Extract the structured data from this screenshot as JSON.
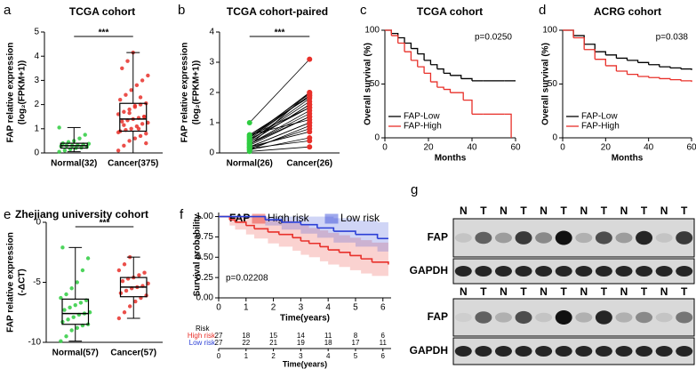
{
  "chart_data": [
    {
      "panel": "a",
      "type": "box",
      "title": "TCGA cohort",
      "ylabel": [
        "FAP relative expression",
        "(log₂(FPKM+1))"
      ],
      "categories": [
        "Normal(32)",
        "Cancer(375)"
      ],
      "ylim": [
        0,
        5
      ],
      "yticks": [
        0,
        1,
        2,
        3,
        4,
        5
      ],
      "significance": "***",
      "boxes": [
        {
          "color": "#2ecc40",
          "min": 0.05,
          "q1": 0.2,
          "median": 0.3,
          "q3": 0.4,
          "max": 1.05,
          "points": [
            0.05,
            0.1,
            0.15,
            0.2,
            0.22,
            0.25,
            0.28,
            0.3,
            0.3,
            0.32,
            0.35,
            0.38,
            0.4,
            0.45,
            0.5,
            0.6,
            0.75,
            1.05
          ]
        },
        {
          "color": "#e8302a",
          "min": 0,
          "q1": 0.9,
          "median": 1.4,
          "q3": 2.05,
          "max": 4.15,
          "points": [
            0.1,
            0.3,
            0.5,
            0.6,
            0.7,
            0.8,
            0.9,
            0.95,
            1.0,
            1.1,
            1.2,
            1.25,
            1.3,
            1.35,
            1.4,
            1.45,
            1.5,
            1.6,
            1.7,
            1.8,
            1.9,
            2.0,
            2.05,
            2.2,
            2.4,
            2.6,
            2.8,
            3.0,
            3.2,
            3.5,
            3.8,
            4.15,
            1.0,
            1.5,
            0.85,
            1.15,
            1.65,
            1.95,
            2.3,
            0.4
          ]
        }
      ]
    },
    {
      "panel": "b",
      "type": "paired",
      "title": "TCGA cohort-paired",
      "ylabel": [
        "FAP relative expression",
        "(log₂(FPKM+1))"
      ],
      "categories": [
        "Normal(26)",
        "Cancer(26)"
      ],
      "ylim": [
        0,
        4
      ],
      "yticks": [
        0,
        1,
        2,
        3,
        4
      ],
      "significance": "***",
      "colors": [
        "#2ecc40",
        "#e8302a"
      ],
      "values": [
        [
          0.05,
          0.1,
          0.15,
          0.2,
          0.25,
          0.3,
          0.35,
          0.4,
          0.45,
          0.5,
          0.55,
          0.6,
          0.2,
          0.3,
          0.1,
          0.4,
          0.25,
          0.35,
          0.15,
          0.5,
          0.3,
          0.2,
          1.0,
          0.45,
          0.6,
          0.55
        ],
        [
          0.2,
          0.5,
          0.8,
          1.0,
          1.2,
          1.4,
          1.6,
          1.8,
          1.9,
          2.0,
          1.5,
          1.1,
          0.7,
          1.3,
          0.9,
          1.7,
          2.0,
          1.6,
          0.4,
          1.9,
          1.2,
          1.0,
          3.1,
          1.5,
          1.85,
          1.95
        ]
      ]
    },
    {
      "panel": "c",
      "type": "km",
      "title": "TCGA cohort",
      "ylabel": [
        "Overall survival (%)"
      ],
      "xlabel": "Months",
      "annotation": "p=0.0250",
      "xlim": [
        0,
        60
      ],
      "xticks": [
        0,
        20,
        40,
        60
      ],
      "ylim": [
        0,
        100
      ],
      "yticks": [
        0,
        50,
        100
      ],
      "legend": "lower left",
      "series": [
        {
          "name": "FAP-Low",
          "color": "#000000",
          "x": [
            0,
            3,
            6,
            9,
            12,
            15,
            18,
            21,
            24,
            27,
            30,
            35,
            40,
            45,
            50,
            55,
            60
          ],
          "values": [
            100,
            97,
            93,
            88,
            83,
            78,
            72,
            68,
            64,
            60,
            58,
            55,
            53,
            53,
            53,
            53,
            53
          ]
        },
        {
          "name": "FAP-High",
          "color": "#e8302a",
          "x": [
            0,
            3,
            6,
            9,
            12,
            15,
            18,
            21,
            24,
            27,
            30,
            36,
            40,
            45,
            50,
            55,
            58
          ],
          "values": [
            100,
            95,
            88,
            80,
            72,
            66,
            60,
            52,
            47,
            45,
            42,
            35,
            22,
            22,
            22,
            22,
            0
          ]
        }
      ]
    },
    {
      "panel": "d",
      "type": "km",
      "title": "ACRG cohort",
      "ylabel": [
        "Overall survival (%)"
      ],
      "xlabel": "Months",
      "annotation": "p=0.038",
      "xlim": [
        0,
        60
      ],
      "xticks": [
        0,
        20,
        40,
        60
      ],
      "ylim": [
        0,
        100
      ],
      "yticks": [
        0,
        50,
        100
      ],
      "legend": "lower left",
      "series": [
        {
          "name": "FAP-Low",
          "color": "#000000",
          "x": [
            0,
            5,
            10,
            15,
            20,
            25,
            30,
            35,
            40,
            45,
            50,
            55,
            60
          ],
          "values": [
            100,
            95,
            87,
            80,
            77,
            74,
            72,
            70,
            68,
            66,
            65,
            64,
            63
          ]
        },
        {
          "name": "FAP-High",
          "color": "#e8302a",
          "x": [
            0,
            5,
            10,
            15,
            20,
            25,
            30,
            35,
            40,
            45,
            50,
            55,
            60
          ],
          "values": [
            100,
            93,
            82,
            73,
            67,
            62,
            59,
            57,
            56,
            55,
            54,
            53,
            52
          ]
        }
      ]
    },
    {
      "panel": "e",
      "type": "box",
      "title": "Zhejiang university cohort",
      "ylabel": [
        "FAP relative expression",
        "(-ΔCT)"
      ],
      "categories": [
        "Normal(57)",
        "Cancer(57)"
      ],
      "ylim": [
        -10,
        0
      ],
      "yticks": [
        0,
        -5,
        -10
      ],
      "significance": "***",
      "boxes": [
        {
          "color": "#2ecc40",
          "min": -9.9,
          "q1": -8.5,
          "median": -7.6,
          "q3": -6.4,
          "max": -2.1,
          "points": [
            -9.9,
            -9.5,
            -9,
            -8.8,
            -8.6,
            -8.5,
            -8.3,
            -8.1,
            -7.9,
            -7.7,
            -7.6,
            -7.5,
            -7.3,
            -7.1,
            -6.9,
            -6.7,
            -6.5,
            -6.3,
            -6,
            -5.5,
            -5,
            -4,
            -3,
            -2.1
          ]
        },
        {
          "color": "#e8302a",
          "min": -8,
          "q1": -6.2,
          "median": -5.4,
          "q3": -4.6,
          "max": -2.9,
          "points": [
            -8,
            -7.5,
            -7,
            -6.6,
            -6.3,
            -6.1,
            -5.9,
            -5.7,
            -5.5,
            -5.4,
            -5.3,
            -5.1,
            -4.9,
            -4.7,
            -4.6,
            -4.4,
            -4.2,
            -4,
            -3.5,
            -2.9
          ]
        }
      ]
    },
    {
      "panel": "f",
      "type": "km_ci",
      "legend_title": "FAP",
      "ylabel": [
        "Survival probability"
      ],
      "xlabel": "Time(years)",
      "annotation": "p=0.02208",
      "xlim": [
        0,
        6.3
      ],
      "xticks": [
        0,
        1,
        2,
        3,
        4,
        5,
        6
      ],
      "ylim": [
        0,
        1.05
      ],
      "yticks": [
        {
          "value": 0,
          "label": "0.00"
        },
        {
          "value": 0.25,
          "label": "0.25"
        },
        {
          "value": 0.5,
          "label": "0.50"
        },
        {
          "value": 0.75,
          "label": "0.75"
        },
        {
          "value": 1,
          "label": "1.00"
        }
      ],
      "risk_label": "Risk",
      "legend": "top",
      "series": [
        {
          "name": "High risk",
          "color": "#e8302a",
          "x": [
            0,
            0.4,
            0.6,
            1,
            1.3,
            1.8,
            2.2,
            2.7,
            3,
            3.3,
            3.7,
            4,
            4.4,
            4.8,
            5.2,
            5.6,
            6.2
          ],
          "values": [
            1,
            0.96,
            0.93,
            0.89,
            0.85,
            0.81,
            0.78,
            0.74,
            0.7,
            0.67,
            0.63,
            0.59,
            0.56,
            0.52,
            0.48,
            0.44,
            0.41
          ],
          "lower": [
            1,
            0.89,
            0.84,
            0.78,
            0.73,
            0.67,
            0.63,
            0.58,
            0.53,
            0.5,
            0.45,
            0.41,
            0.38,
            0.34,
            0.3,
            0.27,
            0.24
          ],
          "upper": [
            1,
            1,
            1,
            1,
            0.99,
            0.97,
            0.95,
            0.92,
            0.89,
            0.86,
            0.83,
            0.8,
            0.77,
            0.74,
            0.71,
            0.68,
            0.65
          ],
          "at_risk": [
            27,
            18,
            15,
            14,
            11,
            8,
            6
          ]
        },
        {
          "name": "Low risk",
          "color": "#2b3fd6",
          "x": [
            0,
            1.7,
            2.3,
            3,
            3.6,
            4.2,
            5,
            5.8,
            6.2
          ],
          "values": [
            1,
            0.96,
            0.93,
            0.9,
            0.86,
            0.82,
            0.78,
            0.73,
            0.73
          ],
          "lower": [
            1,
            0.89,
            0.84,
            0.79,
            0.74,
            0.68,
            0.63,
            0.57,
            0.57
          ],
          "upper": [
            1,
            1,
            1,
            1,
            1,
            0.98,
            0.95,
            0.93,
            0.93
          ],
          "at_risk": [
            27,
            22,
            21,
            19,
            18,
            17,
            11
          ]
        }
      ]
    }
  ],
  "blot": {
    "panel": "g",
    "blocks": [
      {
        "lanes": [
          "N",
          "T",
          "N",
          "T",
          "N",
          "T",
          "N",
          "T",
          "N",
          "T",
          "N",
          "T"
        ],
        "rows": [
          "FAP",
          "GAPDH"
        ]
      },
      {
        "lanes": [
          "N",
          "T",
          "N",
          "T",
          "N",
          "T",
          "N",
          "T",
          "N",
          "T",
          "N",
          "T"
        ],
        "rows": [
          "FAP",
          "GAPDH"
        ]
      }
    ]
  }
}
